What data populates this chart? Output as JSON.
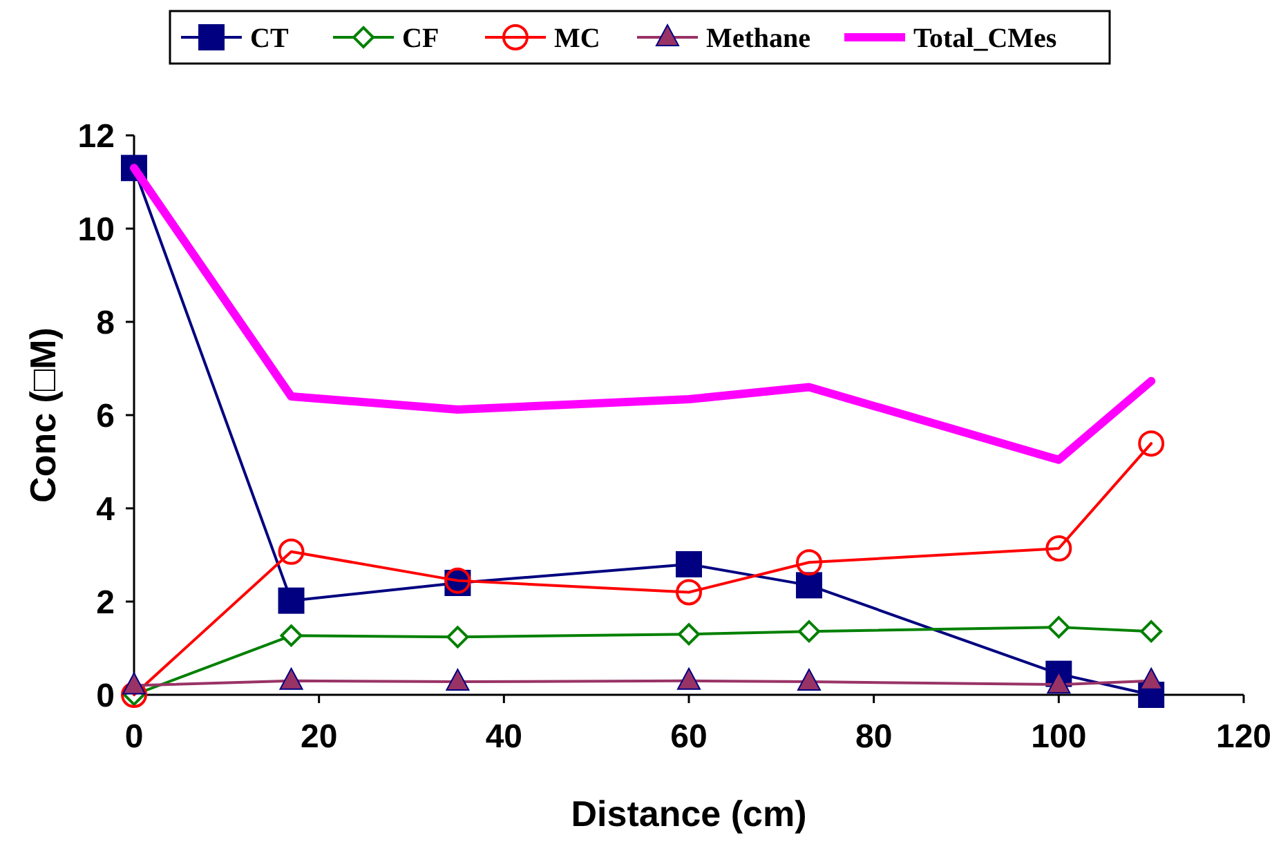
{
  "chart_data": {
    "type": "line",
    "xlabel": "Distance (cm)",
    "ylabel": "Conc (□M)",
    "x": [
      0,
      17,
      35,
      60,
      73,
      100,
      110
    ],
    "xlim": [
      0,
      120
    ],
    "xticks": [
      0,
      20,
      40,
      60,
      80,
      100,
      120
    ],
    "ylim": [
      0,
      12
    ],
    "yticks": [
      0,
      2,
      4,
      6,
      8,
      10,
      12
    ],
    "grid": false,
    "legend": "top",
    "line_style": "solid",
    "series": [
      {
        "name": "CT",
        "color": "#000080",
        "marker": "square",
        "values": [
          11.3,
          2.02,
          2.4,
          2.8,
          2.35,
          0.45,
          0
        ]
      },
      {
        "name": "CF",
        "color": "#008000",
        "marker": "diamond",
        "values": [
          0,
          1.27,
          1.24,
          1.3,
          1.36,
          1.45,
          1.36
        ]
      },
      {
        "name": "MC",
        "color": "#ff0000",
        "marker": "circle",
        "values": [
          0,
          3.07,
          2.45,
          2.2,
          2.84,
          3.14,
          5.39
        ]
      },
      {
        "name": "Methane",
        "color": "#993366",
        "marker": "triangle",
        "values": [
          0.2,
          0.3,
          0.28,
          0.3,
          0.28,
          0.22,
          0.3
        ]
      },
      {
        "name": "Total_CMes",
        "color": "#ff00ff",
        "marker": "none",
        "values": [
          11.3,
          6.4,
          6.12,
          6.34,
          6.6,
          5.04,
          6.73
        ]
      }
    ]
  }
}
